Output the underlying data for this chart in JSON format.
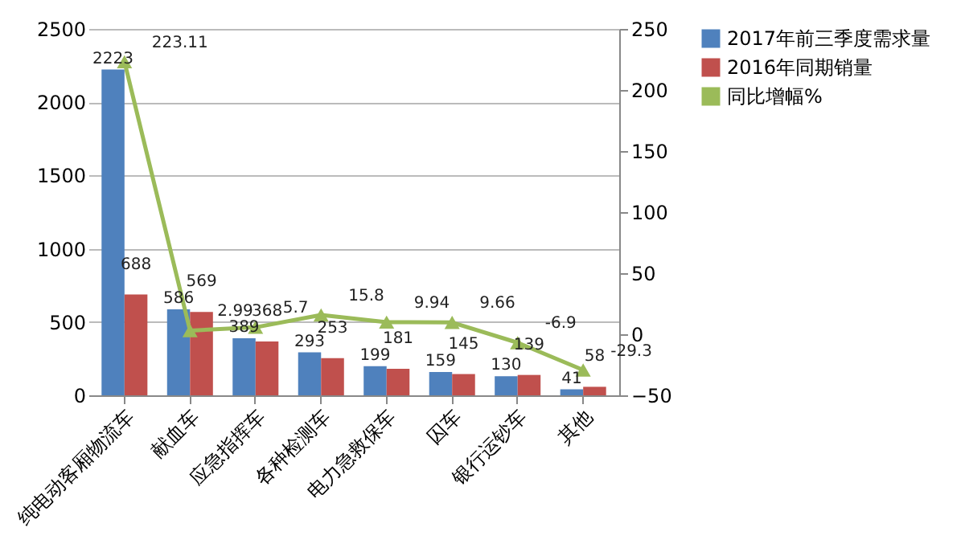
{
  "chart_data": {
    "type": "bar",
    "categories": [
      "纯电动客厢物流车",
      "献血车",
      "应急指挥车",
      "各种检测车",
      "电力急救保车",
      "囚车",
      "银行运钞车",
      "其他"
    ],
    "series": [
      {
        "name": "2017年前三季度需求量",
        "color": "#4f81bd",
        "values": [
          2223,
          586,
          389,
          293,
          199,
          159,
          130,
          41
        ]
      },
      {
        "name": "2016年同期销量",
        "color": "#c0504d",
        "values": [
          688,
          569,
          368,
          253,
          181,
          145,
          139,
          58
        ]
      },
      {
        "name": "同比增幅%",
        "color": "#9bbb59",
        "type": "line",
        "axis": "y2",
        "values": [
          223.11,
          2.99,
          5.7,
          15.8,
          9.94,
          9.66,
          -6.9,
          -29.3
        ]
      }
    ],
    "ylim": [
      0,
      2500
    ],
    "yticks": [
      0,
      500,
      1000,
      1500,
      2000,
      2500
    ],
    "y2lim": [
      -50,
      250
    ],
    "y2ticks": [
      -50,
      0,
      50,
      100,
      150,
      200,
      250
    ],
    "grid": "y",
    "legend": "right",
    "data_labels": true,
    "marker": "triangle"
  }
}
